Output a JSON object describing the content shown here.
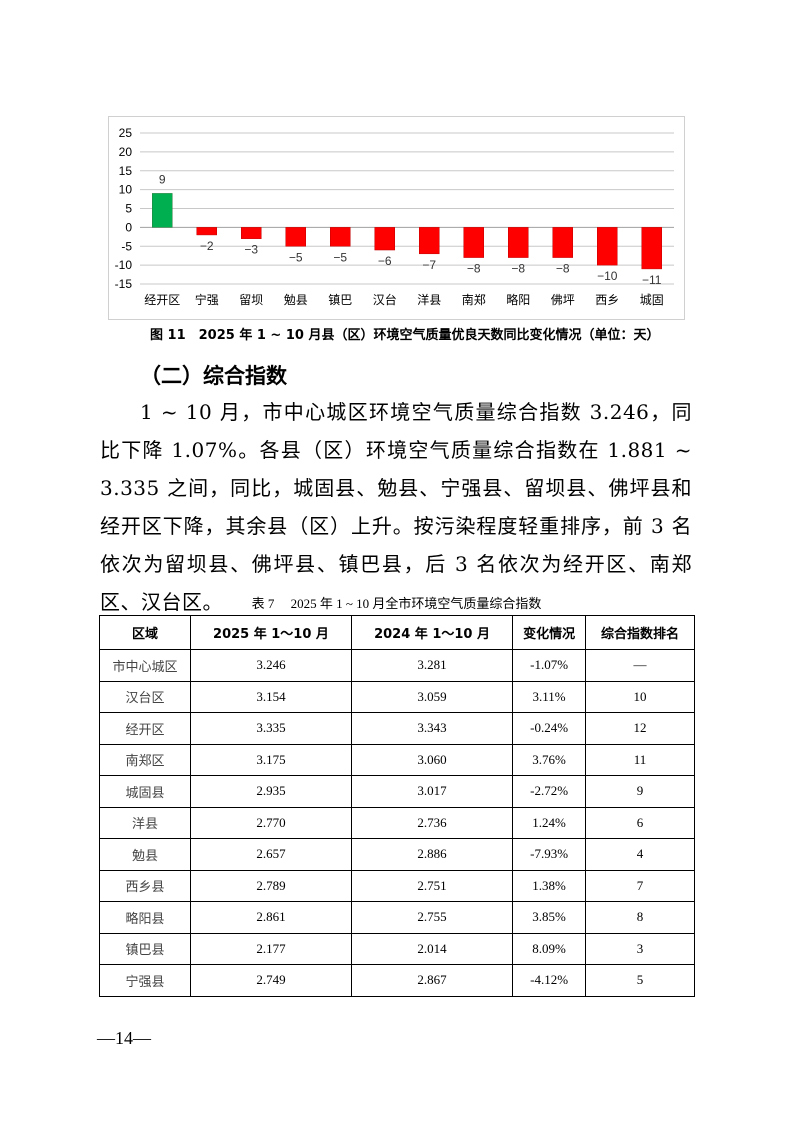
{
  "chart_data": {
    "type": "bar",
    "categories": [
      "经开区",
      "宁强",
      "留坝",
      "勉县",
      "镇巴",
      "汉台",
      "洋县",
      "南郑",
      "略阳",
      "佛坪",
      "西乡",
      "城固"
    ],
    "values": [
      9,
      -2,
      -3,
      -5,
      -5,
      -6,
      -7,
      -8,
      -8,
      -8,
      -10,
      -11
    ],
    "ylim": [
      -15,
      25
    ],
    "yticks": [
      25,
      20,
      15,
      10,
      5,
      0,
      -5,
      -10,
      -15
    ],
    "grid": true,
    "colors": {
      "positive": "#00b050",
      "negative": "#ff0000"
    },
    "title": "图 11　2025 年 1 ~ 10 月县（区）环境空气质量优良天数同比变化情况（单位：天）"
  },
  "heading": "（二）综合指数",
  "paragraph": "1 ~ 10 月，市中心城区环境空气质量综合指数 3.246，同比下降 1.07%。各县（区）环境空气质量综合指数在 1.881 ~ 3.335 之间，同比，城固县、勉县、宁强县、留坝县、佛坪县和经开区下降，其余县（区）上升。按污染程度轻重排序，前 3 名依次为留坝县、佛坪县、镇巴县，后 3 名依次为经开区、南郑区、汉台区。",
  "table": {
    "caption": "表 7　 2025 年 1 ~ 10 月全市环境空气质量综合指数",
    "headers": [
      "区域",
      "2025 年 1～10 月",
      "2024 年 1～10 月",
      "变化情况",
      "综合指数排名"
    ],
    "rows": [
      [
        "市中心城区",
        "3.246",
        "3.281",
        "-1.07%",
        "—"
      ],
      [
        "汉台区",
        "3.154",
        "3.059",
        "3.11%",
        "10"
      ],
      [
        "经开区",
        "3.335",
        "3.343",
        "-0.24%",
        "12"
      ],
      [
        "南郑区",
        "3.175",
        "3.060",
        "3.76%",
        "11"
      ],
      [
        "城固县",
        "2.935",
        "3.017",
        "-2.72%",
        "9"
      ],
      [
        "洋县",
        "2.770",
        "2.736",
        "1.24%",
        "6"
      ],
      [
        "勉县",
        "2.657",
        "2.886",
        "-7.93%",
        "4"
      ],
      [
        "西乡县",
        "2.789",
        "2.751",
        "1.38%",
        "7"
      ],
      [
        "略阳县",
        "2.861",
        "2.755",
        "3.85%",
        "8"
      ],
      [
        "镇巴县",
        "2.177",
        "2.014",
        "8.09%",
        "3"
      ],
      [
        "宁强县",
        "2.749",
        "2.867",
        "-4.12%",
        "5"
      ]
    ]
  },
  "footer": "—14—"
}
